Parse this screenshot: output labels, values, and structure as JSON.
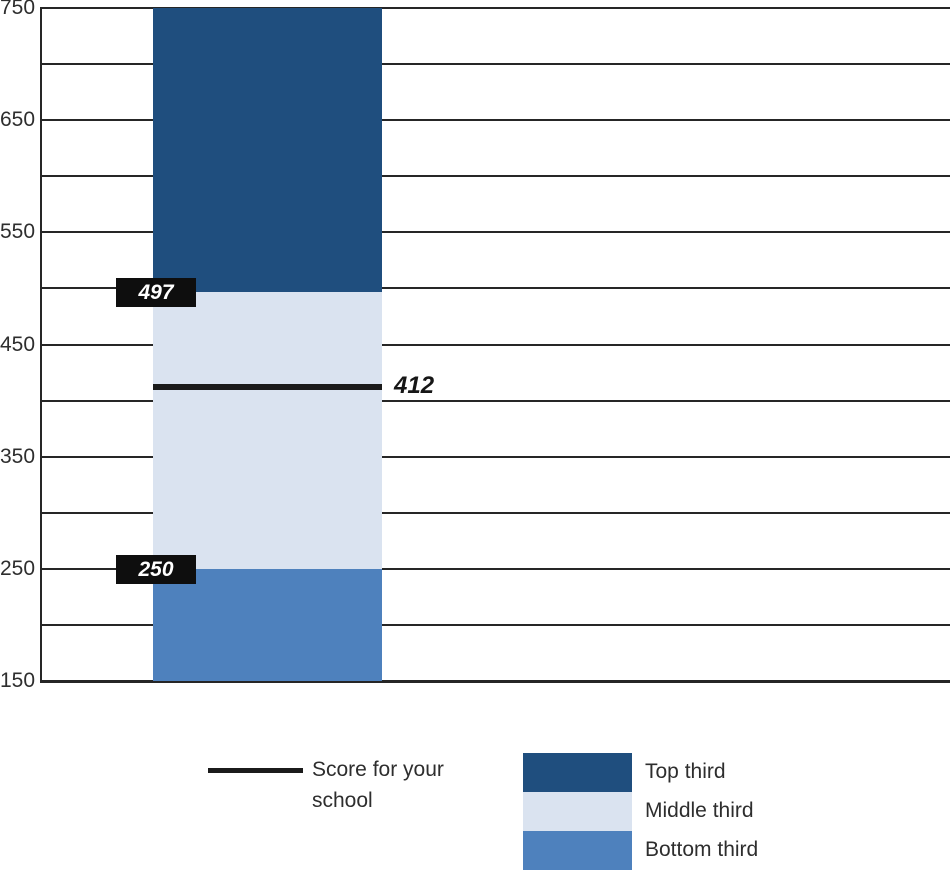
{
  "chart_data": {
    "type": "bar",
    "subtype": "single-stacked-column-with-reference-line",
    "title": "",
    "y_axis": {
      "min": 150,
      "max": 750,
      "gridline_step": 50,
      "label_step": 100,
      "tick_labels": [
        "750",
        "650",
        "550",
        "450",
        "350",
        "250",
        "150"
      ]
    },
    "segments": [
      {
        "name": "Top third",
        "from": 497,
        "to": 750,
        "color": "#1F4E7E"
      },
      {
        "name": "Middle third",
        "from": 250,
        "to": 497,
        "color": "#DAE3F0"
      },
      {
        "name": "Bottom third",
        "from": 150,
        "to": 250,
        "color": "#4E81BD"
      }
    ],
    "boundary_labels": [
      {
        "text": "497",
        "value": 497
      },
      {
        "text": "250",
        "value": 250
      }
    ],
    "score_line": {
      "value": 412,
      "label": "412"
    },
    "legend": {
      "line_entry": {
        "label": "Score for your school"
      },
      "items": [
        {
          "label": "Top third",
          "color": "#1F4E7E"
        },
        {
          "label": "Middle third",
          "color": "#DAE3F0"
        },
        {
          "label": "Bottom third",
          "color": "#4E81BD"
        }
      ]
    },
    "colors": {
      "grid": "#262626",
      "score_line": "#1B1B1B",
      "badge_bg": "#0E0E0E",
      "badge_text": "#FFFFFF",
      "text": "#2E2E2E"
    }
  }
}
